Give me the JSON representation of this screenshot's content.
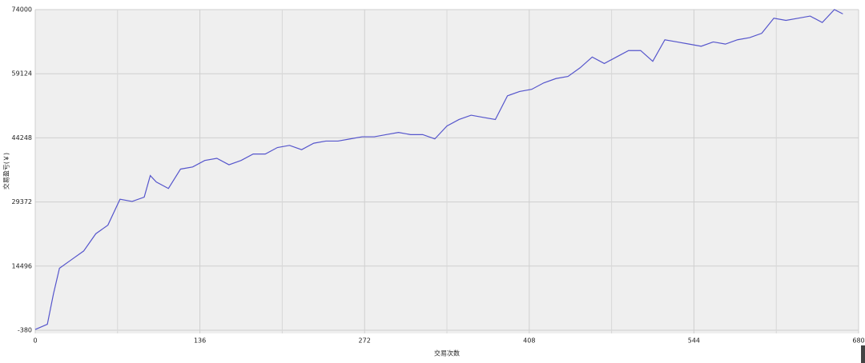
{
  "chart_data": {
    "type": "line",
    "x_label": "交易次数",
    "y_label": "交易盈亏(￥)",
    "x": [
      0,
      10,
      15,
      20,
      30,
      40,
      50,
      60,
      70,
      80,
      90,
      95,
      100,
      110,
      120,
      130,
      140,
      150,
      160,
      170,
      180,
      190,
      200,
      210,
      220,
      230,
      240,
      250,
      260,
      270,
      280,
      290,
      300,
      310,
      320,
      330,
      340,
      350,
      360,
      370,
      380,
      390,
      400,
      410,
      420,
      430,
      440,
      450,
      460,
      470,
      480,
      490,
      500,
      510,
      520,
      530,
      540,
      550,
      560,
      570,
      580,
      590,
      600,
      610,
      620,
      630,
      640,
      650,
      660,
      667
    ],
    "series": [
      {
        "name": "交易盈亏",
        "color": "#5555cc",
        "values": [
          -200,
          1000,
          8000,
          14000,
          16000,
          18000,
          22000,
          24000,
          30000,
          29500,
          30500,
          35500,
          34000,
          32500,
          37000,
          37500,
          39000,
          39500,
          38000,
          39000,
          40500,
          40500,
          42000,
          42500,
          41500,
          43000,
          43500,
          43500,
          44000,
          44500,
          44500,
          45000,
          45500,
          45000,
          45000,
          44000,
          47000,
          48500,
          49500,
          49000,
          48500,
          54000,
          55000,
          55500,
          57000,
          58000,
          58500,
          60500,
          63000,
          61500,
          63000,
          64500,
          64500,
          62000,
          67000,
          66500,
          66000,
          65500,
          66500,
          66000,
          67000,
          67500,
          68500,
          72000,
          71500,
          72000,
          72500,
          71000,
          74000,
          73000
        ]
      }
    ],
    "xlim": [
      0,
      680
    ],
    "xticks": [
      0,
      136,
      272,
      408,
      544,
      680
    ],
    "x_minor_ticks": [
      68,
      204,
      340,
      476,
      612
    ],
    "ylim": [
      -380,
      74000
    ],
    "yticks": [
      -380,
      14496,
      29372,
      44248,
      59124,
      74000
    ],
    "grid": true
  }
}
